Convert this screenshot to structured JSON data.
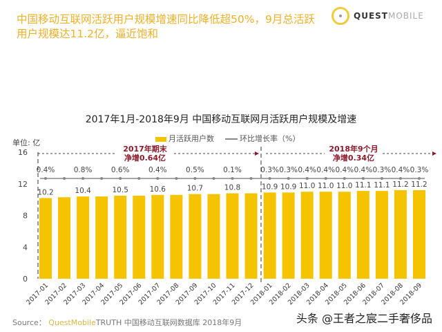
{
  "header": {
    "headline": "中国移动互联网活跃用户规模增速同比降低超50%，9月总活跃用户规模达11.2亿，逼近饱和",
    "logo_bold": "QUEST",
    "logo_light": "MOBILE"
  },
  "footer": {
    "source_label": "Source：",
    "source_brand": "QuestMobile",
    "source_text": "TRUTH 中国移动互联网数据库 2018年9月",
    "watermark": "头条 @王者之宸二手奢侈品"
  },
  "chart_data": {
    "type": "bar",
    "title": "2017年1月-2018年9月 中国移动互联网月活跃用户规模及增速",
    "unit_label": "单位: 亿",
    "legend_position": "top",
    "ylim": [
      0,
      16
    ],
    "yticks": [
      "0",
      "4",
      "8",
      "12",
      "16"
    ],
    "grid": false,
    "categories": [
      "2017-01",
      "2017-02",
      "2017-03",
      "2017-04",
      "2017-05",
      "2017-06",
      "2017-07",
      "2017-08",
      "2017-09",
      "2017-10",
      "2017-11",
      "2017-12",
      "2018-01",
      "2018-02",
      "2018-03",
      "2018-04",
      "2018-05",
      "2018-06",
      "2018-07",
      "2018-08",
      "2018-09"
    ],
    "series": [
      {
        "name": "月活跃用户数",
        "type": "bar",
        "color": "#F5C400",
        "values": [
          10.2,
          10.3,
          10.4,
          10.4,
          10.5,
          10.5,
          10.6,
          10.6,
          10.7,
          10.7,
          10.8,
          10.8,
          10.9,
          10.9,
          11.0,
          11.0,
          11.0,
          11.1,
          11.1,
          11.2,
          11.2
        ],
        "labels": [
          "10.2",
          "",
          "10.4",
          "",
          "10.5",
          "",
          "10.6",
          "",
          "10.7",
          "",
          "10.8",
          "",
          "10.9",
          "10.9",
          "11.0",
          "11.0",
          "11.0",
          "11.1",
          "11.1",
          "11.2",
          "11.2"
        ]
      },
      {
        "name": "环比增长率（%）",
        "type": "line",
        "color": "#888888",
        "labels": [
          "0.4%",
          "",
          "0.8%",
          "",
          "0.6%",
          "",
          "0.4%",
          "",
          "0.5%",
          "",
          "0.1%",
          "",
          "0.3%",
          "0.3%",
          "0.4%",
          "0.4%",
          "0.4%",
          "0.4%",
          "0.3%",
          "0.4%",
          "0.3%"
        ]
      }
    ],
    "annotations": [
      {
        "line1": "2017年期末",
        "line2": "净增0.64亿",
        "color": "#8B1A2B"
      },
      {
        "line1": "2018年9个月",
        "line2": "净增0.34亿",
        "color": "#8B1A2B"
      }
    ]
  }
}
